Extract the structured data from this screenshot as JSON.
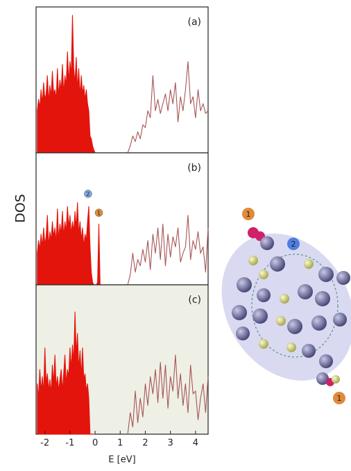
{
  "chart_data": [
    {
      "type": "area",
      "label": "(a)",
      "xlim": [
        -2.35,
        4.5
      ],
      "ylim": [
        0,
        100
      ],
      "series": [
        {
          "color": "#e3140c",
          "fill": true,
          "x": [
            -2.3,
            -2.25,
            -2.2,
            -2.15,
            -2.1,
            -2.05,
            -2.0,
            -1.95,
            -1.9,
            -1.85,
            -1.8,
            -1.75,
            -1.7,
            -1.65,
            -1.6,
            -1.55,
            -1.5,
            -1.45,
            -1.4,
            -1.35,
            -1.3,
            -1.25,
            -1.2,
            -1.15,
            -1.1,
            -1.05,
            -1.0,
            -0.95,
            -0.9,
            -0.85,
            -0.8,
            -0.75,
            -0.7,
            -0.65,
            -0.6,
            -0.55,
            -0.5,
            -0.45,
            -0.4,
            -0.35,
            -0.3,
            -0.25,
            -0.2,
            -0.15,
            -0.1,
            -0.05,
            0
          ],
          "values": [
            30,
            38,
            32,
            45,
            35,
            50,
            38,
            42,
            55,
            36,
            48,
            40,
            58,
            42,
            45,
            38,
            60,
            40,
            52,
            44,
            63,
            42,
            55,
            48,
            72,
            50,
            65,
            55,
            98,
            60,
            50,
            68,
            45,
            60,
            40,
            55,
            42,
            48,
            38,
            45,
            35,
            30,
            12,
            10,
            5,
            2,
            0
          ]
        },
        {
          "color": "#a65555",
          "fill": false,
          "x": [
            1.3,
            1.4,
            1.5,
            1.6,
            1.7,
            1.8,
            1.9,
            2.0,
            2.1,
            2.2,
            2.3,
            2.4,
            2.5,
            2.6,
            2.7,
            2.8,
            2.9,
            3.0,
            3.1,
            3.2,
            3.3,
            3.4,
            3.5,
            3.6,
            3.7,
            3.8,
            3.9,
            4.0,
            4.1,
            4.2,
            4.3,
            4.4,
            4.5
          ],
          "values": [
            0,
            5,
            12,
            8,
            15,
            10,
            20,
            18,
            30,
            25,
            55,
            30,
            38,
            28,
            35,
            42,
            30,
            45,
            35,
            50,
            22,
            40,
            30,
            45,
            65,
            35,
            40,
            25,
            45,
            30,
            35,
            28,
            30
          ]
        }
      ]
    },
    {
      "type": "area",
      "label": "(b)",
      "ylabel": "DOS",
      "xlim": [
        -2.35,
        4.5
      ],
      "ylim": [
        0,
        100
      ],
      "annotations": [
        {
          "text": "2",
          "x": -0.28,
          "y": 72,
          "color": "#7fa6e0"
        },
        {
          "text": "1",
          "x": 0.15,
          "y": 57,
          "color": "#e08a3a"
        }
      ],
      "series": [
        {
          "color": "#e3140c",
          "fill": true,
          "x": [
            -2.3,
            -2.25,
            -2.2,
            -2.15,
            -2.1,
            -2.05,
            -2.0,
            -1.95,
            -1.9,
            -1.85,
            -1.8,
            -1.75,
            -1.7,
            -1.65,
            -1.6,
            -1.55,
            -1.5,
            -1.45,
            -1.4,
            -1.35,
            -1.3,
            -1.25,
            -1.2,
            -1.15,
            -1.1,
            -1.05,
            -1.0,
            -0.95,
            -0.9,
            -0.85,
            -0.8,
            -0.75,
            -0.7,
            -0.65,
            -0.6,
            -0.55,
            -0.5,
            -0.45,
            -0.4,
            -0.35,
            -0.3,
            -0.25,
            -0.2,
            -0.15,
            -0.1,
            -0.05,
            0,
            0.05,
            0.1,
            0.15,
            0.2
          ],
          "values": [
            25,
            35,
            28,
            40,
            30,
            45,
            32,
            38,
            55,
            30,
            42,
            35,
            50,
            38,
            45,
            33,
            60,
            35,
            48,
            40,
            58,
            38,
            50,
            42,
            62,
            45,
            55,
            40,
            50,
            42,
            58,
            45,
            65,
            40,
            50,
            35,
            45,
            30,
            40,
            35,
            50,
            62,
            30,
            10,
            2,
            0,
            0,
            0,
            2,
            48,
            0
          ]
        },
        {
          "color": "#a65555",
          "fill": false,
          "x": [
            1.3,
            1.4,
            1.5,
            1.6,
            1.7,
            1.8,
            1.9,
            2.0,
            2.1,
            2.2,
            2.3,
            2.4,
            2.5,
            2.6,
            2.7,
            2.8,
            2.9,
            3.0,
            3.1,
            3.2,
            3.3,
            3.4,
            3.5,
            3.6,
            3.7,
            3.8,
            3.9,
            4.0,
            4.1,
            4.2,
            4.3,
            4.4,
            4.5
          ],
          "values": [
            0,
            8,
            25,
            10,
            20,
            15,
            28,
            18,
            35,
            12,
            40,
            25,
            45,
            20,
            48,
            15,
            40,
            22,
            38,
            30,
            45,
            18,
            25,
            30,
            55,
            20,
            35,
            28,
            42,
            25,
            30,
            10,
            45
          ]
        }
      ]
    },
    {
      "type": "area",
      "label": "(c)",
      "background": "#eef0e6",
      "xlabel": "E [eV]",
      "xlim": [
        -2.35,
        4.5
      ],
      "ylim": [
        0,
        100
      ],
      "xticks": [
        -2,
        -1,
        0,
        1,
        2,
        3,
        4
      ],
      "series": [
        {
          "color": "#e3140c",
          "fill": true,
          "x": [
            -2.3,
            -2.25,
            -2.2,
            -2.15,
            -2.1,
            -2.05,
            -2.0,
            -1.95,
            -1.9,
            -1.85,
            -1.8,
            -1.75,
            -1.7,
            -1.65,
            -1.6,
            -1.55,
            -1.5,
            -1.45,
            -1.4,
            -1.35,
            -1.3,
            -1.25,
            -1.2,
            -1.15,
            -1.1,
            -1.05,
            -1.0,
            -0.95,
            -0.9,
            -0.85,
            -0.8,
            -0.75,
            -0.7,
            -0.65,
            -0.6,
            -0.55,
            -0.5,
            -0.45,
            -0.4,
            -0.35,
            -0.3,
            -0.25,
            -0.2,
            -0.15,
            -0.1,
            -0.05,
            0
          ],
          "values": [
            35,
            25,
            45,
            30,
            40,
            28,
            60,
            35,
            42,
            30,
            38,
            28,
            48,
            35,
            55,
            32,
            40,
            30,
            38,
            45,
            30,
            42,
            55,
            35,
            45,
            40,
            60,
            45,
            62,
            50,
            85,
            55,
            70,
            45,
            58,
            40,
            60,
            38,
            42,
            30,
            35,
            25,
            0,
            0,
            0,
            0,
            0
          ]
        },
        {
          "color": "#a65555",
          "fill": false,
          "x": [
            1.3,
            1.4,
            1.5,
            1.6,
            1.7,
            1.8,
            1.9,
            2.0,
            2.1,
            2.2,
            2.3,
            2.4,
            2.5,
            2.6,
            2.7,
            2.8,
            2.9,
            3.0,
            3.1,
            3.2,
            3.3,
            3.4,
            3.5,
            3.6,
            3.7,
            3.8,
            3.9,
            4.0,
            4.1,
            4.2,
            4.3,
            4.4,
            4.5
          ],
          "values": [
            0,
            15,
            5,
            30,
            8,
            25,
            12,
            35,
            20,
            40,
            28,
            45,
            22,
            50,
            25,
            48,
            18,
            40,
            30,
            55,
            25,
            42,
            20,
            35,
            15,
            48,
            28,
            30,
            10,
            25,
            35,
            15,
            40
          ]
        }
      ]
    }
  ],
  "structure": {
    "labels": [
      {
        "text": "1",
        "color": "#e08a3a"
      },
      {
        "text": "2",
        "color": "#4f7ee0"
      },
      {
        "text": "1",
        "color": "#e08a3a"
      }
    ]
  }
}
